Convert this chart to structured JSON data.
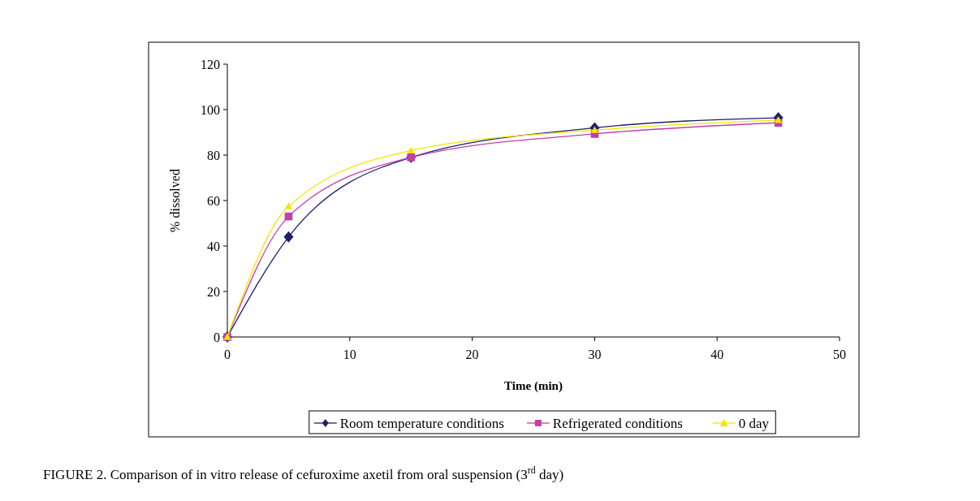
{
  "chart_data": {
    "type": "line",
    "xlabel": "Time (min)",
    "ylabel": "% dissolved",
    "x": [
      0,
      5,
      15,
      30,
      45
    ],
    "xlim": [
      0,
      50
    ],
    "xticks": [
      0,
      10,
      20,
      30,
      40,
      50
    ],
    "ylim": [
      0,
      120
    ],
    "yticks": [
      0,
      20,
      40,
      60,
      80,
      100,
      120
    ],
    "legend": "bottom",
    "grid": false,
    "series": [
      {
        "name": "Room temperature conditions",
        "color": "#1f1f6e",
        "marker": "diamond",
        "values": [
          0,
          44,
          79,
          92,
          96.4
        ]
      },
      {
        "name": "Refrigerated conditions",
        "color": "#c040a8",
        "marker": "square",
        "values": [
          0,
          53,
          79,
          89.3,
          94.2
        ]
      },
      {
        "name": "0 day",
        "color": "#f2e600",
        "marker": "triangle",
        "values": [
          0,
          57.5,
          82,
          91,
          95.4
        ]
      }
    ],
    "annotations": [
      "FIGURE 2. Comparison of in vitro release of cefuroxime axetil from oral suspension (3$^{rd}$ day)"
    ]
  }
}
